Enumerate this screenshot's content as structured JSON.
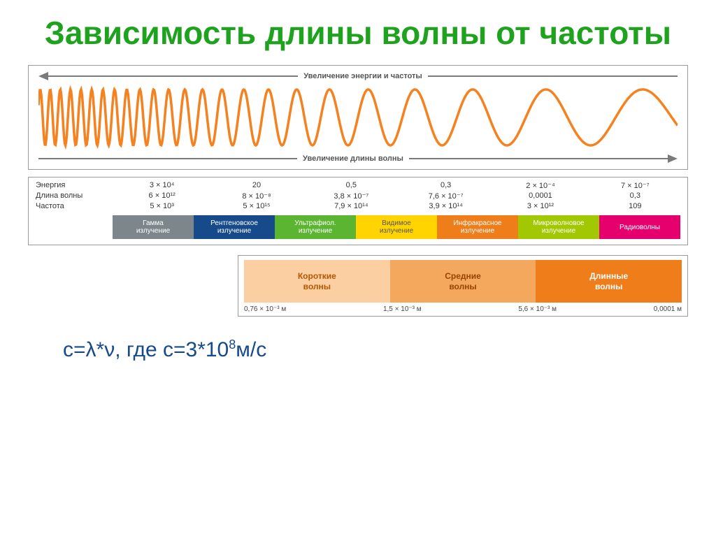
{
  "title": {
    "text": "Зависимость длины волны от частоты",
    "color": "#1fa31f"
  },
  "wave": {
    "top_label": "Увеличение энергии  и частоты",
    "bottom_label": "Увеличение длины волны",
    "stroke": "#f58220",
    "arrow_color": "#7a7a7a"
  },
  "table": {
    "rows": [
      "Энергия",
      "Длина волны",
      "Частота"
    ],
    "cols": [
      {
        "e": "3 × 10⁴",
        "l": "6 × 10¹²",
        "f": "5 × 10³"
      },
      {
        "e": "20",
        "l": "8 × 10⁻⁸",
        "f": "5 × 10¹⁵"
      },
      {
        "e": "0,5",
        "l": "3,8 × 10⁻⁷",
        "f": "7,9 × 10¹⁴"
      },
      {
        "e": "0,3",
        "l": "7,6 × 10⁻⁷",
        "f": "3,9 × 10¹⁴"
      },
      {
        "e": "2 × 10⁻⁴",
        "l": "0,0001",
        "f": "3 × 10¹²"
      },
      {
        "e": "7 × 10⁻⁷",
        "l": "0,3",
        "f": "109"
      }
    ]
  },
  "spectrum": [
    {
      "label": "Гамма\nизлучение",
      "bg": "#7d868b",
      "fg": "#ffffff"
    },
    {
      "label": "Рентгеновское\nизлучение",
      "bg": "#164a8a",
      "fg": "#ffffff"
    },
    {
      "label": "Ультрафиол.\nизлучение",
      "bg": "#5bb531",
      "fg": "#ffffff"
    },
    {
      "label": "Видимое\nизлучение",
      "bg": "#ffd400",
      "fg": "#555555"
    },
    {
      "label": "Инфракрасное\nизлучение",
      "bg": "#ee7d1a",
      "fg": "#ffffff"
    },
    {
      "label": "Микроволновое\nизлучение",
      "bg": "#a1c800",
      "fg": "#ffffff"
    },
    {
      "label": "Радиоволны",
      "bg": "#e5006d",
      "fg": "#ffffff"
    }
  ],
  "radio": {
    "bands": [
      {
        "label": "Короткие\nволны",
        "bg": "#fbcfa2",
        "fg": "#b55600"
      },
      {
        "label": "Средние\nволны",
        "bg": "#f4a85d",
        "fg": "#9a4200"
      },
      {
        "label": "Длинные\nволны",
        "bg": "#ee7d1a",
        "fg": "#ffffff"
      }
    ],
    "scale": [
      "0,76 × 10⁻³ м",
      "1,5 × 10⁻³ м",
      "5,6 × 10⁻³ м",
      "0,0001 м"
    ]
  },
  "formula": {
    "text_html": "с=λ*ν, где с=3*10<sup>8</sup>м/с",
    "color": "#164a8a"
  }
}
